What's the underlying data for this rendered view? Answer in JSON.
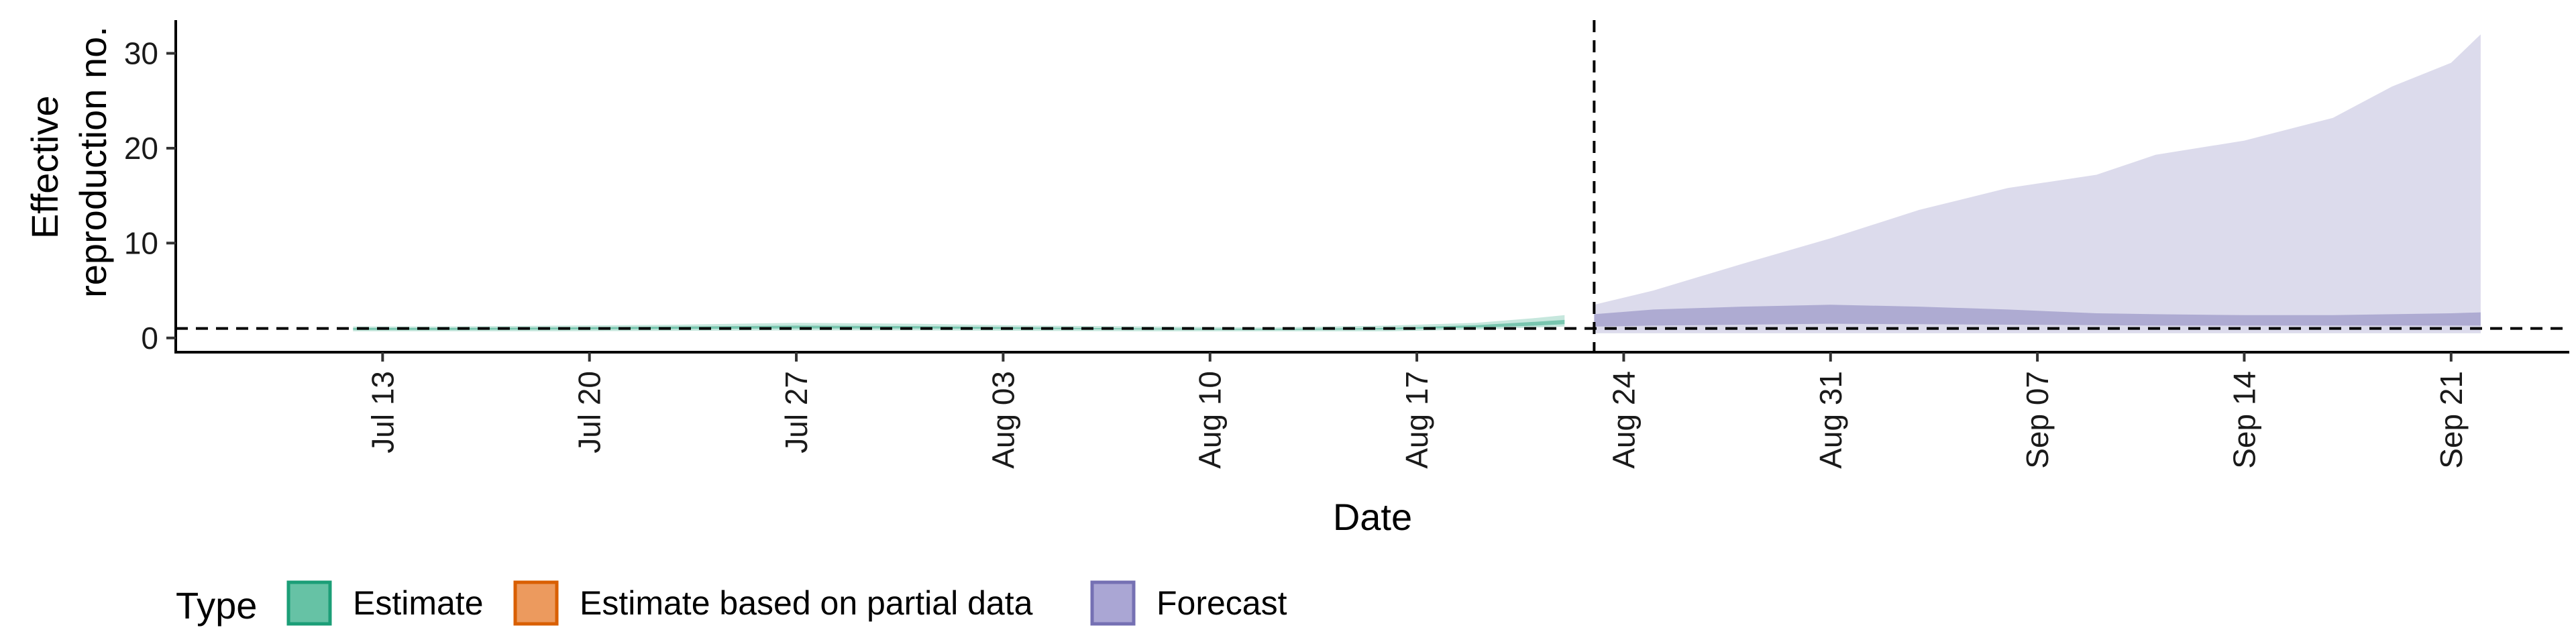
{
  "chart_data": {
    "type": "area",
    "xlabel": "Date",
    "ylabel_lines": [
      "Effective",
      "reproduction no."
    ],
    "ylim": [
      -1.5,
      33.5
    ],
    "y_ticks": [
      0,
      10,
      20,
      30
    ],
    "x_range": [
      "2020-07-06",
      "2020-09-25"
    ],
    "x_ticks": [
      {
        "date": "2020-07-13",
        "label": "Jul 13"
      },
      {
        "date": "2020-07-20",
        "label": "Jul 20"
      },
      {
        "date": "2020-07-27",
        "label": "Jul 27"
      },
      {
        "date": "2020-08-03",
        "label": "Aug 03"
      },
      {
        "date": "2020-08-10",
        "label": "Aug 10"
      },
      {
        "date": "2020-08-17",
        "label": "Aug 17"
      },
      {
        "date": "2020-08-24",
        "label": "Aug 24"
      },
      {
        "date": "2020-08-31",
        "label": "Aug 31"
      },
      {
        "date": "2020-09-07",
        "label": "Sep 07"
      },
      {
        "date": "2020-09-14",
        "label": "Sep 14"
      },
      {
        "date": "2020-09-21",
        "label": "Sep 21"
      }
    ],
    "reference_hline": 1,
    "reference_vline": "2020-08-23",
    "series": [
      {
        "name": "Estimate",
        "color": "#1b9e77",
        "x": [
          "2020-07-12",
          "2020-07-15",
          "2020-07-19",
          "2020-07-23",
          "2020-07-27",
          "2020-07-31",
          "2020-08-04",
          "2020-08-08",
          "2020-08-12",
          "2020-08-16",
          "2020-08-19",
          "2020-08-21",
          "2020-08-22"
        ],
        "outer_lower": [
          0.7,
          0.7,
          0.7,
          0.75,
          0.8,
          0.8,
          0.75,
          0.7,
          0.7,
          0.7,
          0.9,
          1.1,
          1.2
        ],
        "outer_upper": [
          1.2,
          1.2,
          1.3,
          1.4,
          1.6,
          1.5,
          1.3,
          1.2,
          1.1,
          1.3,
          1.6,
          2.1,
          2.4
        ],
        "inner_lower": [
          0.85,
          0.85,
          0.9,
          0.95,
          1.0,
          1.0,
          0.95,
          0.9,
          0.85,
          0.9,
          1.1,
          1.3,
          1.45
        ],
        "inner_upper": [
          1.05,
          1.05,
          1.1,
          1.2,
          1.3,
          1.25,
          1.1,
          1.0,
          0.95,
          1.05,
          1.35,
          1.7,
          1.9
        ]
      },
      {
        "name": "Estimate based on partial data",
        "color": "#d95f02",
        "x": [],
        "outer_lower": [],
        "outer_upper": [],
        "inner_lower": [],
        "inner_upper": []
      },
      {
        "name": "Forecast",
        "color": "#7570b3",
        "x": [
          "2020-08-23",
          "2020-08-25",
          "2020-08-28",
          "2020-08-31",
          "2020-09-03",
          "2020-09-06",
          "2020-09-09",
          "2020-09-11",
          "2020-09-14",
          "2020-09-17",
          "2020-09-19",
          "2020-09-21",
          "2020-09-22"
        ],
        "outer_lower": [
          0.5,
          0.5,
          0.5,
          0.5,
          0.5,
          0.5,
          0.5,
          0.5,
          0.5,
          0.5,
          0.5,
          0.5,
          0.5
        ],
        "outer_upper": [
          3.5,
          5.0,
          7.8,
          10.5,
          13.5,
          15.8,
          17.2,
          19.3,
          20.8,
          23.2,
          26.5,
          29.0,
          32.0
        ],
        "inner_lower": [
          1.2,
          1.3,
          1.4,
          1.5,
          1.45,
          1.4,
          1.35,
          1.3,
          1.3,
          1.3,
          1.3,
          1.3,
          1.3
        ],
        "inner_upper": [
          2.5,
          3.0,
          3.3,
          3.5,
          3.3,
          3.0,
          2.6,
          2.5,
          2.4,
          2.4,
          2.5,
          2.6,
          2.7
        ]
      }
    ],
    "legend": {
      "title": "Type",
      "placement": "bottom",
      "entries": [
        {
          "label": "Estimate",
          "fill": "#66c2a5",
          "stroke": "#1b9e77"
        },
        {
          "label": "Estimate based on partial data",
          "fill": "#ec9a5e",
          "stroke": "#d95f02"
        },
        {
          "label": "Forecast",
          "fill": "#aaa6d4",
          "stroke": "#7570b3"
        }
      ]
    }
  }
}
